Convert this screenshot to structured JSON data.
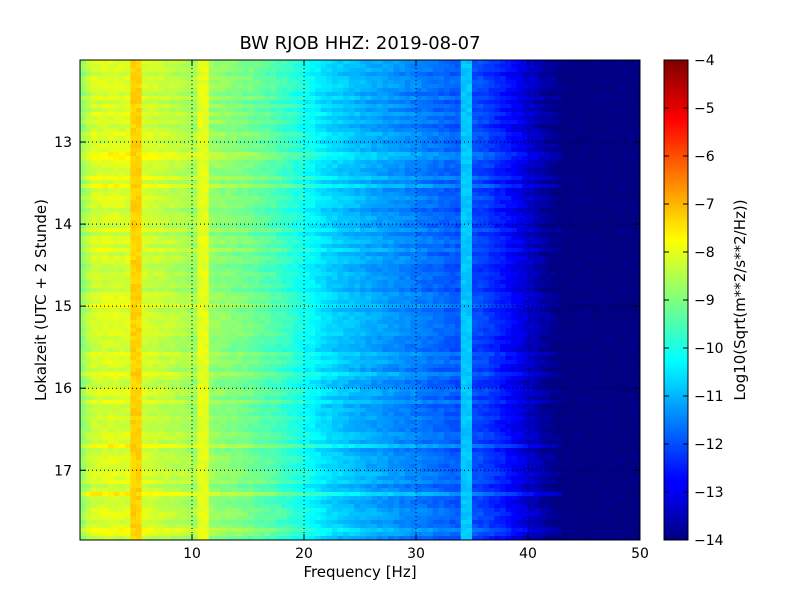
{
  "chart_data": {
    "type": "heatmap",
    "title": "BW RJOB HHZ: 2019-08-07",
    "xlabel": "Frequency [Hz]",
    "ylabel": "Lokalzeit (UTC + 2 Stunde)",
    "xlim": [
      0,
      50
    ],
    "ylim": [
      12.0,
      17.85
    ],
    "x_ticks": [
      10,
      20,
      30,
      40,
      50
    ],
    "y_ticks": [
      13,
      14,
      15,
      16,
      17
    ],
    "grid": true,
    "colormap": "jet",
    "colorbar": {
      "label": "Log10(Sqrt(m**2/s**2/Hz))",
      "range": [
        -14,
        -4
      ],
      "ticks": [
        -14,
        -13,
        -12,
        -11,
        -10,
        -9,
        -8,
        -7,
        -6,
        -5,
        -4
      ]
    },
    "frequency_profile": {
      "x": [
        0,
        1,
        3,
        6,
        10,
        15,
        18,
        20,
        22,
        25,
        28,
        30,
        33,
        36,
        38,
        40,
        41.5,
        43,
        50
      ],
      "value": [
        -9.0,
        -8.2,
        -8.1,
        -8.2,
        -8.6,
        -9.1,
        -9.6,
        -10.1,
        -10.6,
        -11.0,
        -11.3,
        -11.5,
        -11.8,
        -12.1,
        -12.6,
        -13.2,
        -13.7,
        -14.0,
        -14.0
      ]
    },
    "line_features": [
      {
        "label": "5 Hz line",
        "x": 5.0,
        "value": -7.3
      },
      {
        "label": "11 Hz line",
        "x": 11.0,
        "value": -8.0
      },
      {
        "label": "34.5 Hz line",
        "x": 34.5,
        "value": -10.8
      }
    ]
  }
}
